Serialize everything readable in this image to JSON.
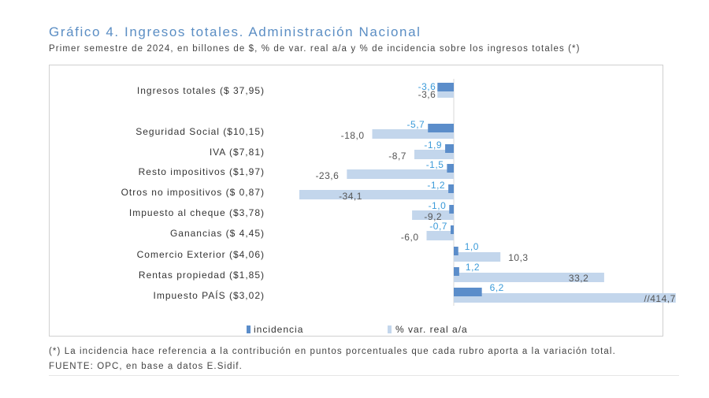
{
  "title": "Gráfico 4. Ingresos totales. Administración Nacional",
  "subtitle": "Primer semestre de 2024, en billones de $, % de var. real a/a y % de incidencia sobre los ingresos totales (*)",
  "note": "(*) La incidencia hace referencia a la contribución en puntos porcentuales que cada rubro aporta a la variación total.",
  "source": "FUENTE: OPC, en base a datos E.Sidif.",
  "colors": {
    "incidencia": "#5b8dca",
    "variacion": "#c3d6ec",
    "incidencia_label": "#3a9ad9",
    "variacion_label": "#555555"
  },
  "chart_data": {
    "type": "bar",
    "orientation": "horizontal",
    "categories": [
      "Ingresos totales ($ 37,95)",
      "Seguridad Social ($10,15)",
      "IVA ($7,81)",
      "Resto impositivos ($1,97)",
      "Otros no impositivos ($ 0,87)",
      "Impuesto al cheque ($3,78)",
      "Ganancias ($ 4,45)",
      "Comercio Exterior ($4,06)",
      "Rentas propiedad ($1,85)",
      "Impuesto PAÍS ($3,02)"
    ],
    "series": [
      {
        "name": "incidencia",
        "values": [
          -3.6,
          -5.7,
          -1.9,
          -1.5,
          -1.2,
          -1.0,
          -0.7,
          1.0,
          1.2,
          6.2
        ],
        "labels": [
          "-3,6",
          "-5,7",
          "-1,9",
          "-1,5",
          "-1,2",
          "-1,0",
          "-0,7",
          "1,0",
          "1,2",
          "6,2"
        ]
      },
      {
        "name": "% var. real a/a",
        "values": [
          -3.6,
          -18.0,
          -8.7,
          -23.6,
          -34.1,
          -9.2,
          -6.0,
          10.3,
          33.2,
          414.7
        ],
        "labels": [
          "-3,6",
          "-18,0",
          "-8,7",
          "-23,6",
          "-34,1",
          "-9,2",
          "-6,0",
          "10,3",
          "33,2",
          "//414,7"
        ]
      }
    ],
    "truncated_max": 49,
    "legend_position": "bottom",
    "grid": false
  }
}
